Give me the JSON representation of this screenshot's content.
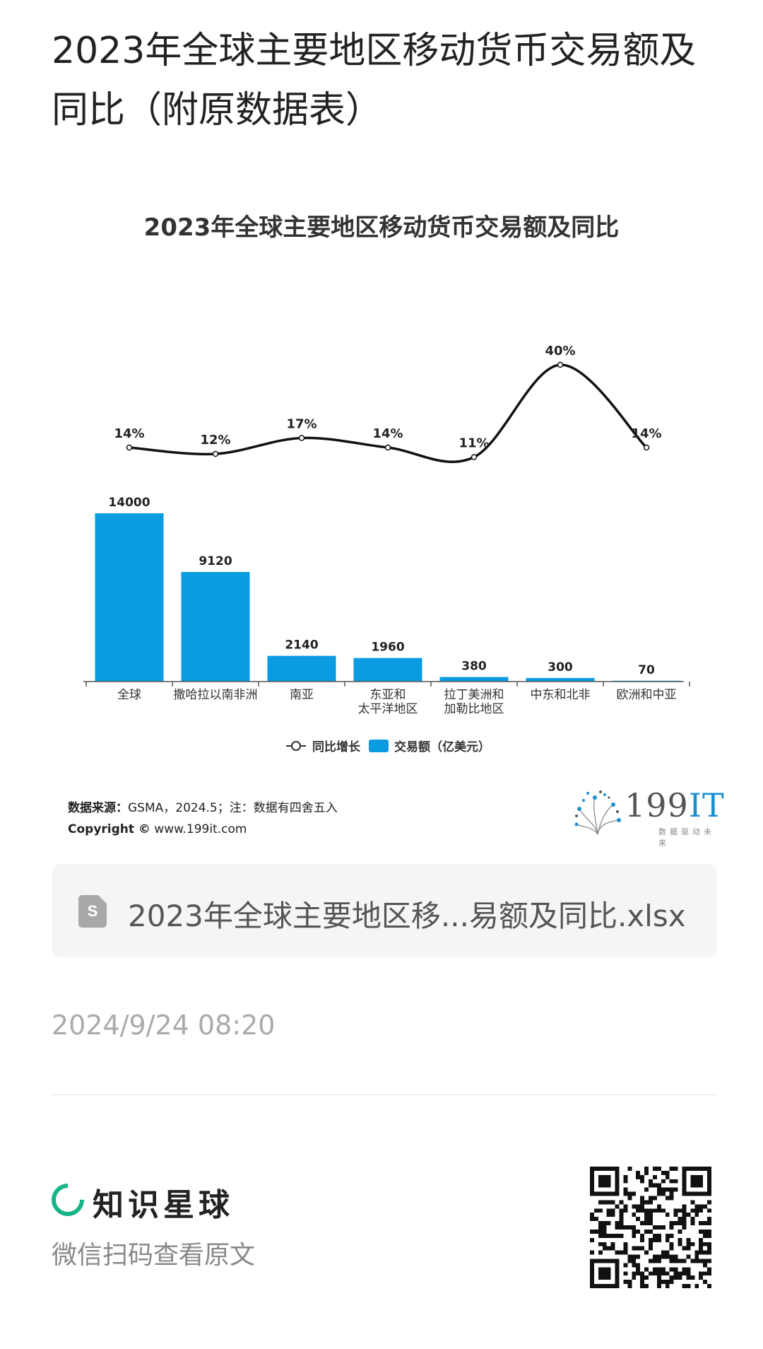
{
  "page": {
    "title": "2023年全球主要地区移动货币交易额及同比（附原数据表）"
  },
  "chart_data": {
    "type": "bar",
    "title": "2023年全球主要地区移动货币交易额及同比",
    "categories": [
      "全球",
      "撒哈拉以南非洲",
      "南亚",
      "东亚和太平洋地区",
      "拉丁美洲和加勒比地区",
      "中东和北非",
      "欧洲和中亚"
    ],
    "category_lines": [
      [
        "全球"
      ],
      [
        "撒哈拉以南非洲"
      ],
      [
        "南亚"
      ],
      [
        "东亚和",
        "太平洋地区"
      ],
      [
        "拉丁美洲和",
        "加勒比地区"
      ],
      [
        "中东和北非"
      ],
      [
        "欧洲和中亚"
      ]
    ],
    "series": [
      {
        "name": "交易额（亿美元）",
        "type": "bar",
        "values": [
          14000,
          9120,
          2140,
          1960,
          380,
          300,
          70
        ],
        "color": "#0b9be0"
      },
      {
        "name": "同比增长",
        "type": "line",
        "values": [
          14,
          12,
          17,
          14,
          11,
          40,
          14
        ],
        "labels": [
          "14%",
          "12%",
          "17%",
          "14%",
          "11%",
          "40%",
          "14%"
        ],
        "color": "#111111"
      }
    ],
    "bar_labels": [
      "14000",
      "9120",
      "2140",
      "1960",
      "380",
      "300",
      "70"
    ],
    "legend": {
      "position": "bottom",
      "line_label": "同比增长",
      "bar_label": "交易额（亿美元）"
    },
    "grid": false
  },
  "source": {
    "label": "数据来源：",
    "text": "GSMA，2024.5；注：数据有四舍五入",
    "copyright_label": "Copyright ©",
    "copyright_url": "www.199it.com"
  },
  "logo": {
    "main": "199",
    "accent": "IT",
    "tagline": "数据驱动未来",
    "accent_color": "#1a8fd0"
  },
  "attachment": {
    "icon": "spreadsheet-icon",
    "icon_letter": "S",
    "filename": "2023年全球主要地区移...易额及同比.xlsx"
  },
  "timestamp": "2024/9/24 08:20",
  "footer": {
    "brand": "知识星球",
    "brand_color": "#18b48a",
    "scan_text": "微信扫码查看原文",
    "qr_icon": "qr-code"
  }
}
